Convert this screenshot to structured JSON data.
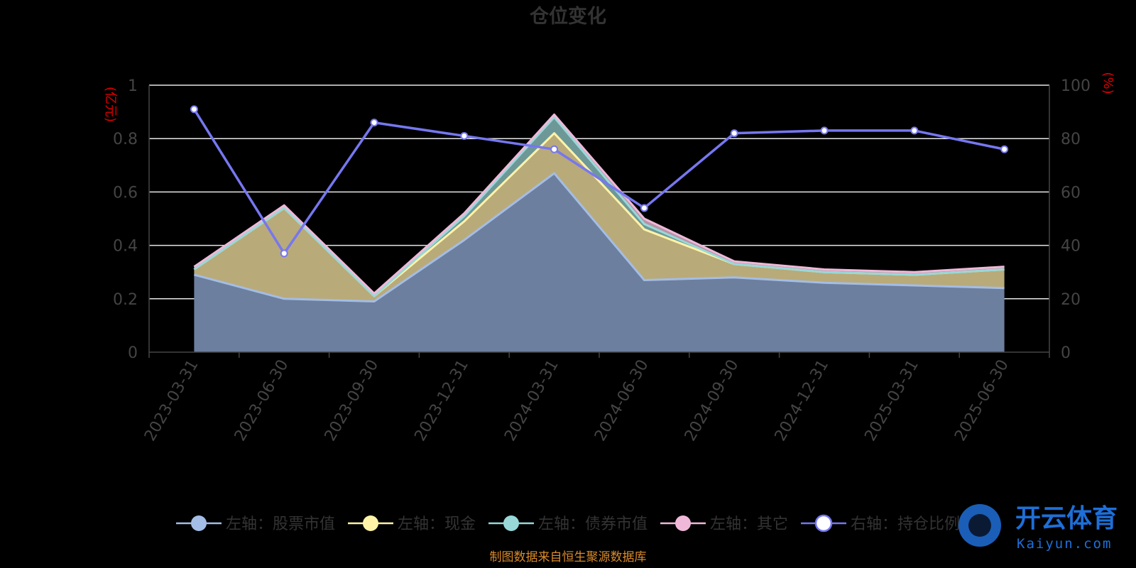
{
  "chart_data": {
    "type": "area",
    "title": "仓位变化",
    "left_unit": "(亿元)",
    "right_unit": "(%)",
    "x": [
      "2023-03-31",
      "2023-06-30",
      "2023-09-30",
      "2023-12-31",
      "2024-03-31",
      "2024-06-30",
      "2024-09-30",
      "2024-12-31",
      "2025-03-31",
      "2025-06-30"
    ],
    "y_left_range": [
      0,
      1
    ],
    "y_left_ticks": [
      "0",
      "0.2",
      "0.4",
      "0.6",
      "0.8",
      "1"
    ],
    "y_right_range": [
      0,
      100
    ],
    "y_right_ticks": [
      "0",
      "20",
      "40",
      "60",
      "80",
      "100"
    ],
    "stacked": true,
    "grid": true,
    "legend_position": "bottom",
    "series": [
      {
        "name": "左轴：股票市值",
        "axis": "left",
        "color": "#a3bde6",
        "fill": "#6d7f9e",
        "values": [
          0.29,
          0.2,
          0.19,
          0.42,
          0.67,
          0.27,
          0.28,
          0.26,
          0.25,
          0.24
        ]
      },
      {
        "name": "左轴：现金",
        "axis": "left",
        "color": "#fff3a8",
        "fill": "#b9aa79",
        "values": [
          0.02,
          0.34,
          0.02,
          0.07,
          0.15,
          0.19,
          0.05,
          0.04,
          0.04,
          0.07
        ]
      },
      {
        "name": "左轴：债券市值",
        "axis": "left",
        "color": "#98d8d8",
        "fill": "#6e9898",
        "values": [
          0.0,
          0.0,
          0.0,
          0.02,
          0.06,
          0.02,
          0.0,
          0.0,
          0.0,
          0.0
        ]
      },
      {
        "name": "左轴：其它",
        "axis": "left",
        "color": "#f0b8d8",
        "fill": "#b594a6",
        "values": [
          0.01,
          0.01,
          0.01,
          0.01,
          0.01,
          0.02,
          0.01,
          0.01,
          0.01,
          0.01
        ]
      },
      {
        "name": "右轴：持仓比例",
        "axis": "right",
        "color": "#7677f0",
        "values": [
          91,
          37,
          86,
          81,
          76,
          54,
          82,
          83,
          83,
          76
        ]
      }
    ]
  },
  "source_note": "制图数据来自恒生聚源数据库",
  "watermark": {
    "cn": "开云体育",
    "en": "Kaiyun.com"
  }
}
